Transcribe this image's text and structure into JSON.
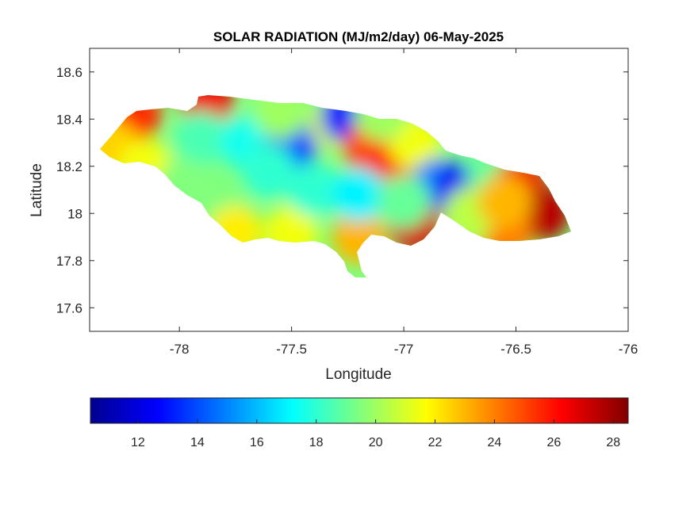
{
  "chart_data": {
    "type": "heatmap",
    "title": "SOLAR RADIATION (MJ/m2/day) 06-May-2025",
    "xlabel": "Longitude",
    "ylabel": "Latitude",
    "xlim": [
      -78.4,
      -76
    ],
    "ylim": [
      17.5,
      18.7
    ],
    "xticks": [
      "-78",
      "-77.5",
      "-77",
      "-76.5",
      "-76"
    ],
    "yticks": [
      "17.6",
      "17.8",
      "18",
      "18.2",
      "18.4",
      "18.6"
    ],
    "colormap": "jet",
    "colorbar": {
      "placement": "bottom",
      "range": [
        10.4,
        28.5
      ],
      "ticks": [
        "12",
        "14",
        "16",
        "18",
        "20",
        "22",
        "24",
        "26",
        "28"
      ]
    },
    "grid": false,
    "region": "Jamaica",
    "features": [
      {
        "lon": -78.2,
        "lat": 18.42,
        "value": 25.5
      },
      {
        "lon": -77.88,
        "lat": 18.48,
        "value": 26.5
      },
      {
        "lon": -78.3,
        "lat": 18.28,
        "value": 22.5
      },
      {
        "lon": -78.15,
        "lat": 18.2,
        "value": 21.5
      },
      {
        "lon": -77.9,
        "lat": 18.32,
        "value": 18.5
      },
      {
        "lon": -77.7,
        "lat": 18.3,
        "value": 17.5
      },
      {
        "lon": -77.5,
        "lat": 18.3,
        "value": 14.0
      },
      {
        "lon": -77.3,
        "lat": 18.38,
        "value": 21.0
      },
      {
        "lon": -77.25,
        "lat": 18.41,
        "value": 13.0
      },
      {
        "lon": -77.15,
        "lat": 18.28,
        "value": 25.0
      },
      {
        "lon": -77.05,
        "lat": 18.18,
        "value": 26.0
      },
      {
        "lon": -76.95,
        "lat": 18.3,
        "value": 21.5
      },
      {
        "lon": -76.85,
        "lat": 18.12,
        "value": 15.0
      },
      {
        "lon": -76.75,
        "lat": 18.1,
        "value": 12.5
      },
      {
        "lon": -76.6,
        "lat": 18.18,
        "value": 19.0
      },
      {
        "lon": -76.48,
        "lat": 18.12,
        "value": 26.5
      },
      {
        "lon": -76.38,
        "lat": 18.0,
        "value": 27.5
      },
      {
        "lon": -76.55,
        "lat": 17.92,
        "value": 24.0
      },
      {
        "lon": -76.95,
        "lat": 17.95,
        "value": 27.0
      },
      {
        "lon": -77.2,
        "lat": 17.9,
        "value": 23.0
      },
      {
        "lon": -77.5,
        "lat": 17.92,
        "value": 21.5
      },
      {
        "lon": -77.8,
        "lat": 18.0,
        "value": 19.5
      },
      {
        "lon": -77.75,
        "lat": 17.92,
        "value": 22.0
      },
      {
        "lon": -77.4,
        "lat": 18.1,
        "value": 18.0
      },
      {
        "lon": -77.2,
        "lat": 18.08,
        "value": 17.0
      },
      {
        "lon": -77.0,
        "lat": 18.05,
        "value": 19.0
      },
      {
        "lon": -76.7,
        "lat": 18.0,
        "value": 20.5
      },
      {
        "lon": -77.98,
        "lat": 18.12,
        "value": 19.5
      },
      {
        "lon": -77.6,
        "lat": 18.18,
        "value": 18.0
      },
      {
        "lon": -77.55,
        "lat": 18.43,
        "value": 20.0
      },
      {
        "lon": -77.1,
        "lat": 18.42,
        "value": 20.0
      },
      {
        "lon": -76.55,
        "lat": 18.05,
        "value": 23.0
      }
    ]
  }
}
